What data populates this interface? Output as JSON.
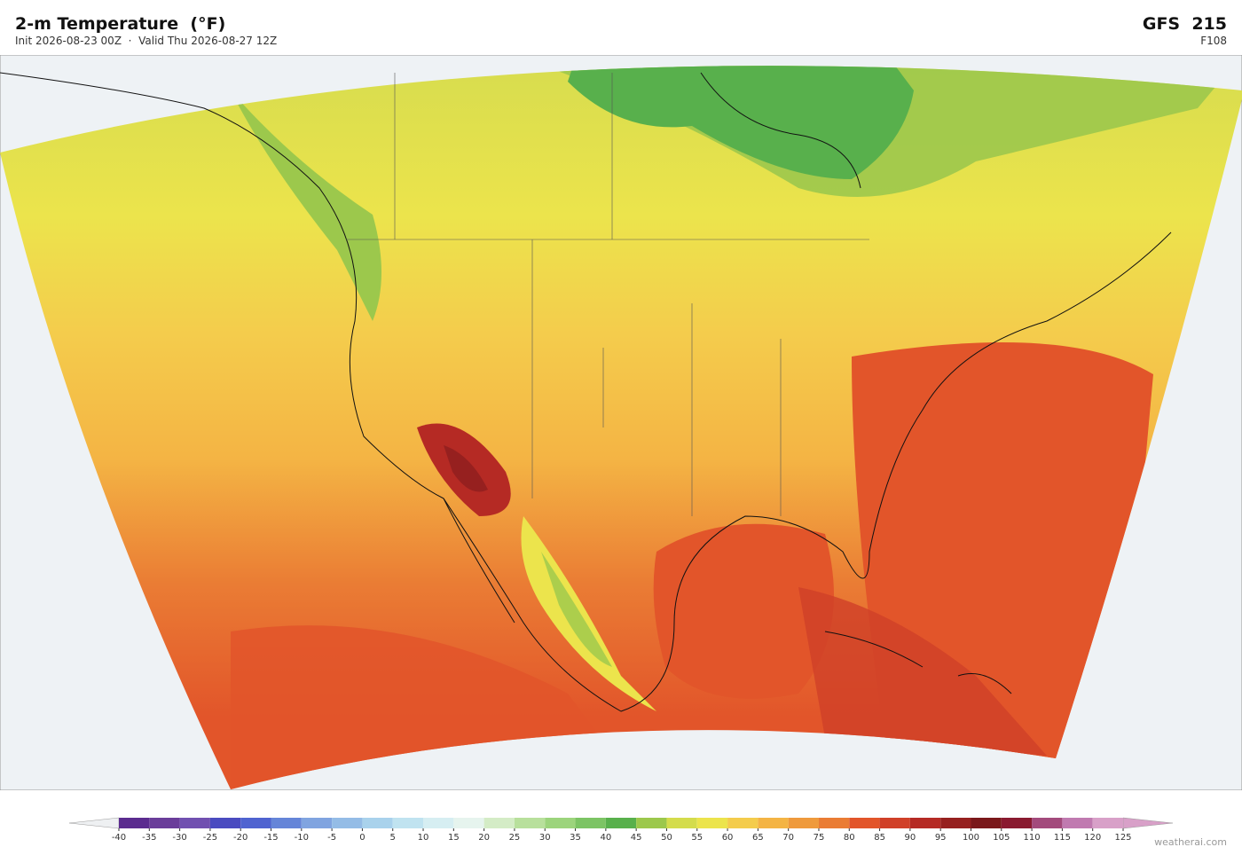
{
  "header": {
    "title": "2-m Temperature  (°F)",
    "subtitle": "Init 2026-08-23 00Z  ·  Valid Thu 2026-08-27 12Z",
    "model": "GFS  215",
    "forecast_hour": "F108"
  },
  "colorbar": {
    "ticks": [
      -40,
      -35,
      -30,
      -25,
      -20,
      -15,
      -10,
      -5,
      0,
      5,
      10,
      15,
      20,
      25,
      30,
      35,
      40,
      45,
      50,
      55,
      60,
      65,
      70,
      75,
      80,
      85,
      90,
      95,
      100,
      105,
      110,
      115,
      120,
      125
    ],
    "colors": [
      "#5b2c8f",
      "#6a3d9a",
      "#7150b0",
      "#4a4bc0",
      "#4f63d0",
      "#6585d8",
      "#80a4e0",
      "#94bce6",
      "#a9d2ec",
      "#c0e3f0",
      "#d6eef2",
      "#e6f4ee",
      "#d4ecc6",
      "#b8e09c",
      "#9cd47c",
      "#7cc464",
      "#58b04c",
      "#9cc84c",
      "#d4dc4c",
      "#ece44c",
      "#f4cc4c",
      "#f4b444",
      "#ef9a3c",
      "#ea7c34",
      "#e2552a",
      "#d04028",
      "#b52a24",
      "#96201f",
      "#7a181a",
      "#8a1a30",
      "#a34a7c",
      "#c07ab0",
      "#d8a0c8"
    ]
  },
  "footer": {
    "credit": "weatherai.com"
  }
}
